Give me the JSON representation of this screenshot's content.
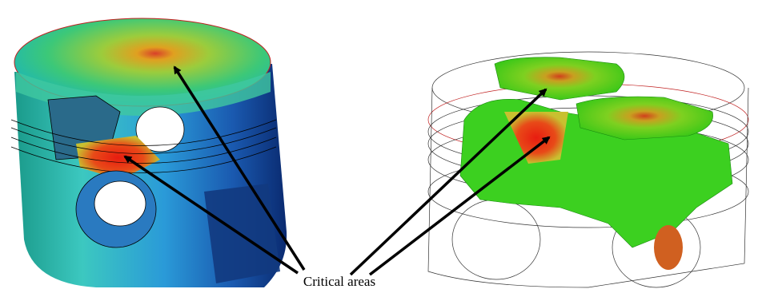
{
  "annotation": {
    "label": "Critical areas"
  }
}
